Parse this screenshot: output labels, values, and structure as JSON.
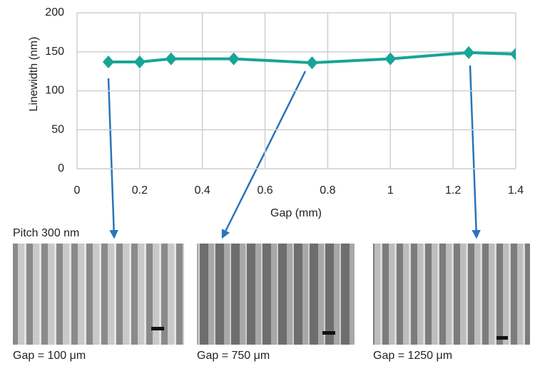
{
  "chart_data": {
    "type": "line",
    "x_label": "Gap (mm)",
    "y_label": "Linewidth (nm)",
    "x": [
      0.1,
      0.2,
      0.3,
      0.5,
      0.75,
      1,
      1.25,
      1.4
    ],
    "series": [
      {
        "name": "Linewidth",
        "color": "#17a596",
        "values": [
          137,
          137,
          141,
          141,
          136,
          141,
          149,
          147
        ]
      }
    ],
    "xlim": [
      0,
      1.4
    ],
    "xticks": [
      0,
      0.2,
      0.4,
      0.6,
      0.8,
      1,
      1.2,
      1.4
    ],
    "ylim": [
      0,
      200
    ],
    "yticks": [
      0,
      50,
      100,
      150,
      200
    ],
    "grid": true,
    "annotation": "Pitch 300 nm",
    "images": [
      {
        "caption": "Gap = 100 μm"
      },
      {
        "caption": "Gap = 750 μm"
      },
      {
        "caption": "Gap = 1250 μm"
      }
    ]
  }
}
